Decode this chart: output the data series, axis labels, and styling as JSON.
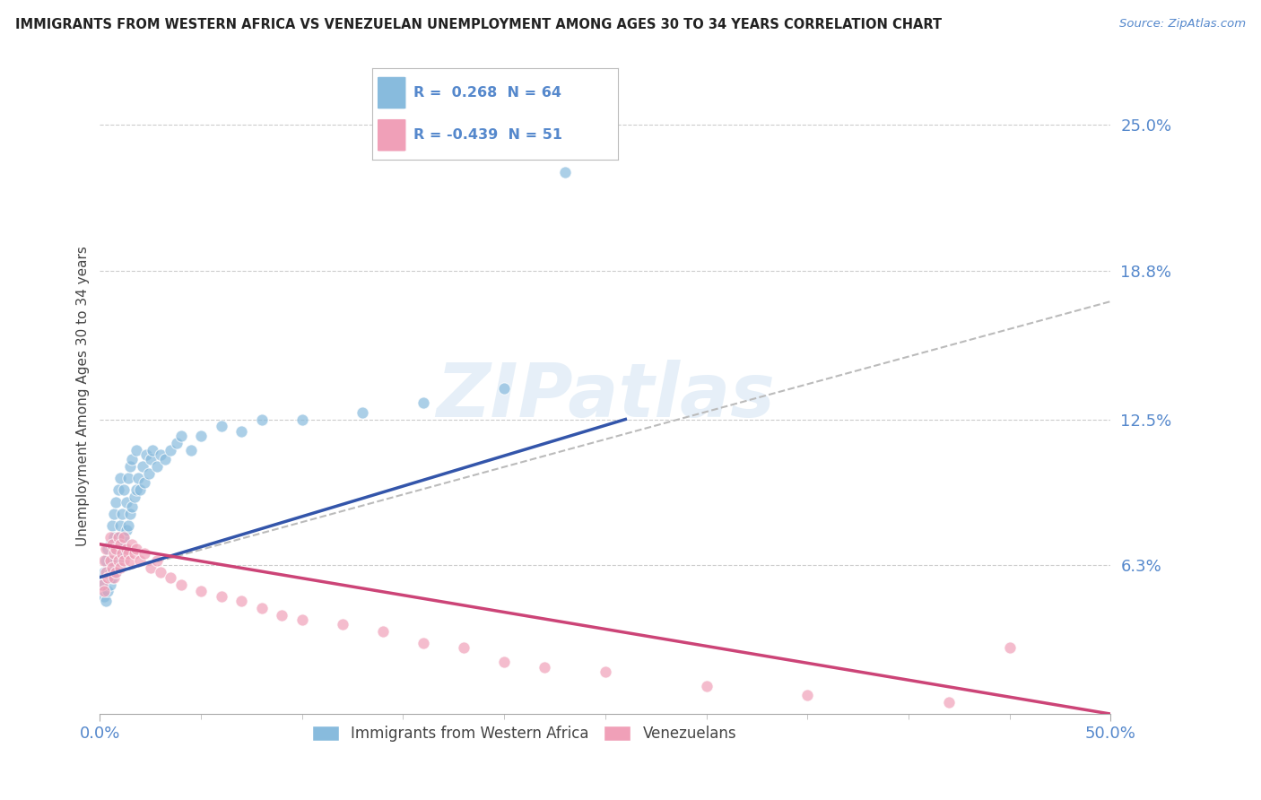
{
  "title": "IMMIGRANTS FROM WESTERN AFRICA VS VENEZUELAN UNEMPLOYMENT AMONG AGES 30 TO 34 YEARS CORRELATION CHART",
  "source": "Source: ZipAtlas.com",
  "ylabel_label": "Unemployment Among Ages 30 to 34 years",
  "ytick_vals": [
    0.0,
    0.063,
    0.125,
    0.188,
    0.25
  ],
  "ytick_labels": [
    "",
    "6.3%",
    "12.5%",
    "18.8%",
    "25.0%"
  ],
  "xtick_labels": [
    "0.0%",
    "50.0%"
  ],
  "xlim": [
    0.0,
    0.5
  ],
  "ylim": [
    0.0,
    0.27
  ],
  "legend_r1": "R =  0.268",
  "legend_n1": "N = 64",
  "legend_r2": "R = -0.439",
  "legend_n2": "N = 51",
  "blue_color": "#88bbdd",
  "pink_color": "#f0a0b8",
  "trend_blue": "#3355aa",
  "trend_pink": "#cc4477",
  "trend_gray": "#bbbbbb",
  "watermark_text": "ZIPatlas",
  "background": "#ffffff",
  "grid_color": "#cccccc",
  "blue_scatter_x": [
    0.001,
    0.002,
    0.002,
    0.003,
    0.003,
    0.004,
    0.004,
    0.005,
    0.005,
    0.005,
    0.006,
    0.006,
    0.006,
    0.007,
    0.007,
    0.007,
    0.008,
    0.008,
    0.008,
    0.009,
    0.009,
    0.009,
    0.01,
    0.01,
    0.01,
    0.011,
    0.011,
    0.012,
    0.012,
    0.013,
    0.013,
    0.014,
    0.014,
    0.015,
    0.015,
    0.016,
    0.016,
    0.017,
    0.018,
    0.018,
    0.019,
    0.02,
    0.021,
    0.022,
    0.023,
    0.024,
    0.025,
    0.026,
    0.028,
    0.03,
    0.032,
    0.035,
    0.038,
    0.04,
    0.045,
    0.05,
    0.06,
    0.07,
    0.08,
    0.1,
    0.13,
    0.16,
    0.2,
    0.23
  ],
  "blue_scatter_y": [
    0.055,
    0.05,
    0.06,
    0.048,
    0.065,
    0.052,
    0.07,
    0.055,
    0.06,
    0.072,
    0.058,
    0.065,
    0.08,
    0.062,
    0.075,
    0.085,
    0.06,
    0.07,
    0.09,
    0.065,
    0.075,
    0.095,
    0.068,
    0.08,
    0.1,
    0.072,
    0.085,
    0.075,
    0.095,
    0.078,
    0.09,
    0.08,
    0.1,
    0.085,
    0.105,
    0.088,
    0.108,
    0.092,
    0.095,
    0.112,
    0.1,
    0.095,
    0.105,
    0.098,
    0.11,
    0.102,
    0.108,
    0.112,
    0.105,
    0.11,
    0.108,
    0.112,
    0.115,
    0.118,
    0.112,
    0.118,
    0.122,
    0.12,
    0.125,
    0.125,
    0.128,
    0.132,
    0.138,
    0.23
  ],
  "pink_scatter_x": [
    0.001,
    0.002,
    0.002,
    0.003,
    0.003,
    0.004,
    0.005,
    0.005,
    0.006,
    0.006,
    0.007,
    0.007,
    0.008,
    0.008,
    0.009,
    0.009,
    0.01,
    0.01,
    0.011,
    0.012,
    0.012,
    0.013,
    0.014,
    0.015,
    0.016,
    0.017,
    0.018,
    0.02,
    0.022,
    0.025,
    0.028,
    0.03,
    0.035,
    0.04,
    0.05,
    0.06,
    0.07,
    0.08,
    0.09,
    0.1,
    0.12,
    0.14,
    0.16,
    0.18,
    0.2,
    0.22,
    0.25,
    0.3,
    0.35,
    0.42,
    0.45
  ],
  "pink_scatter_y": [
    0.055,
    0.052,
    0.065,
    0.06,
    0.07,
    0.058,
    0.065,
    0.075,
    0.062,
    0.072,
    0.058,
    0.068,
    0.06,
    0.07,
    0.065,
    0.075,
    0.062,
    0.072,
    0.068,
    0.065,
    0.075,
    0.07,
    0.068,
    0.065,
    0.072,
    0.068,
    0.07,
    0.065,
    0.068,
    0.062,
    0.065,
    0.06,
    0.058,
    0.055,
    0.052,
    0.05,
    0.048,
    0.045,
    0.042,
    0.04,
    0.038,
    0.035,
    0.03,
    0.028,
    0.022,
    0.02,
    0.018,
    0.012,
    0.008,
    0.005,
    0.028
  ],
  "blue_trend_x": [
    0.0,
    0.26
  ],
  "blue_trend_y": [
    0.058,
    0.125
  ],
  "gray_trend_x": [
    0.0,
    0.5
  ],
  "gray_trend_y": [
    0.058,
    0.175
  ],
  "pink_trend_x": [
    0.0,
    0.5
  ],
  "pink_trend_y": [
    0.072,
    0.0
  ]
}
